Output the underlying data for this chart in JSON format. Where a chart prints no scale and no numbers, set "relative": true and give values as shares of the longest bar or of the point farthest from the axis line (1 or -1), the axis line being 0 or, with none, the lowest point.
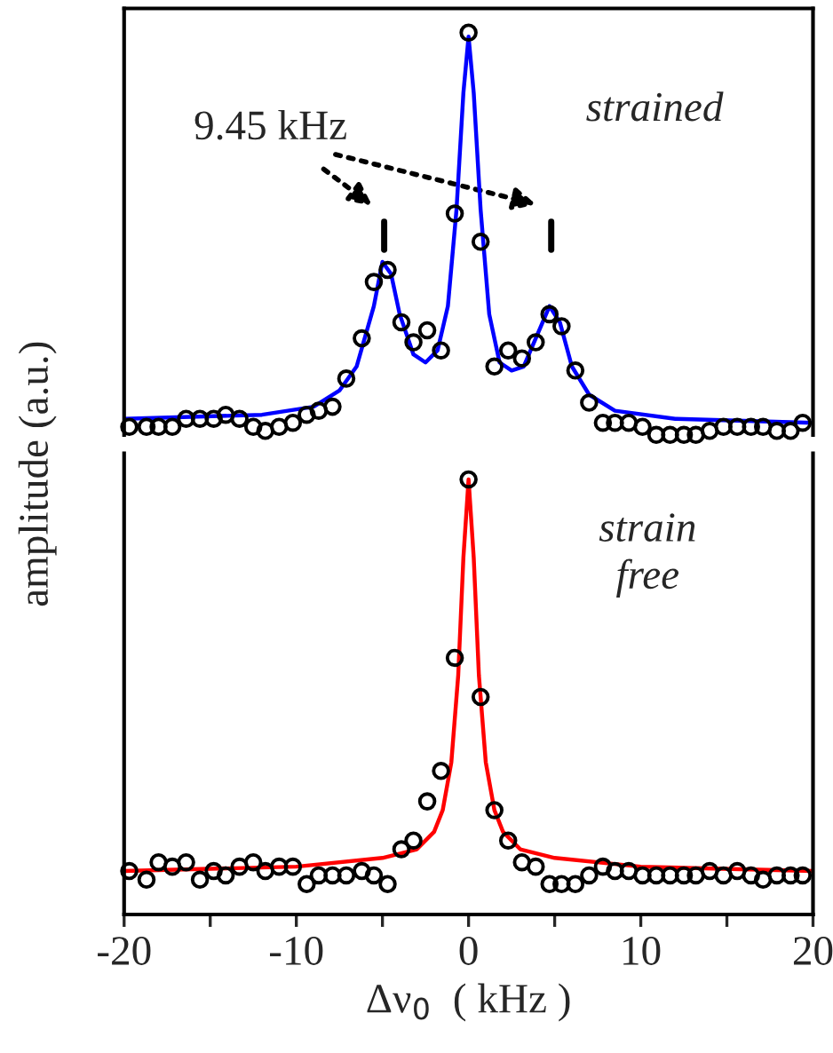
{
  "chart_data": [
    {
      "type": "scatter",
      "relative": true,
      "xlim": [
        -20,
        20
      ],
      "tick_labels": false,
      "ylabel": "amplitude (a.u.)",
      "annotations": [
        "9.45 kHz",
        "strained"
      ],
      "series": [
        {
          "color": "#000000",
          "marker": "circle",
          "x": [
            -19.7,
            -18.7,
            -18.0,
            -17.2,
            -16.4,
            -15.6,
            -14.8,
            -14.1,
            -13.3,
            -12.5,
            -11.8,
            -11.0,
            -10.2,
            -9.4,
            -8.7,
            -7.9,
            -7.1,
            -6.2,
            -5.5,
            -4.7,
            -3.9,
            -3.2,
            -2.4,
            -1.6,
            -0.8,
            0.0,
            0.7,
            1.5,
            2.3,
            3.1,
            3.9,
            4.7,
            5.4,
            6.2,
            7.0,
            7.8,
            8.5,
            9.3,
            10.1,
            10.9,
            11.7,
            12.5,
            13.2,
            14.0,
            14.8,
            15.6,
            16.4,
            17.1,
            17.9,
            18.7,
            19.4
          ],
          "values": [
            0.02,
            0.02,
            0.02,
            0.02,
            0.04,
            0.04,
            0.04,
            0.05,
            0.04,
            0.02,
            0.01,
            0.02,
            0.03,
            0.05,
            0.06,
            0.07,
            0.14,
            0.24,
            0.38,
            0.41,
            0.28,
            0.23,
            0.26,
            0.21,
            0.55,
            1.0,
            0.48,
            0.17,
            0.21,
            0.19,
            0.23,
            0.3,
            0.27,
            0.16,
            0.08,
            0.03,
            0.03,
            0.03,
            0.02,
            0.0,
            0.0,
            0.0,
            0.0,
            0.01,
            0.02,
            0.02,
            0.02,
            0.02,
            0.01,
            0.01,
            0.03
          ]
        },
        {
          "type": "line",
          "color": "#0000ff",
          "x": [
            -20,
            -12,
            -9,
            -7.5,
            -6.5,
            -5.5,
            -5,
            -4.5,
            -4,
            -3.2,
            -2.5,
            -1.8,
            -1.2,
            -0.7,
            -0.3,
            0,
            0.3,
            0.7,
            1.2,
            1.8,
            2.5,
            3.2,
            4,
            4.7,
            5.3,
            6,
            7,
            8.5,
            12,
            20
          ],
          "values": [
            0.04,
            0.05,
            0.07,
            0.11,
            0.17,
            0.32,
            0.43,
            0.4,
            0.3,
            0.2,
            0.18,
            0.21,
            0.32,
            0.56,
            0.85,
            0.99,
            0.85,
            0.56,
            0.3,
            0.18,
            0.16,
            0.17,
            0.25,
            0.32,
            0.28,
            0.17,
            0.1,
            0.06,
            0.04,
            0.03
          ]
        }
      ]
    },
    {
      "type": "scatter",
      "relative": true,
      "xlim": [
        -20,
        20
      ],
      "tick_labels": "x",
      "xlabel": "Δν$_{0}$  ( kHz )",
      "xticks": [
        -20,
        {
          "value": -15,
          "label": null
        },
        -10,
        {
          "value": -5,
          "label": null
        },
        0,
        {
          "value": 5,
          "label": null
        },
        10,
        {
          "value": 15,
          "label": null
        },
        20
      ],
      "annotations": [
        "strain\nfree"
      ],
      "series": [
        {
          "color": "#000000",
          "marker": "circle",
          "x": [
            -19.7,
            -18.7,
            -18.0,
            -17.2,
            -16.4,
            -15.6,
            -14.8,
            -14.1,
            -13.3,
            -12.5,
            -11.8,
            -11.0,
            -10.2,
            -9.4,
            -8.7,
            -7.9,
            -7.1,
            -6.2,
            -5.5,
            -4.7,
            -3.9,
            -3.2,
            -2.4,
            -1.6,
            -0.8,
            0.0,
            0.7,
            1.5,
            2.3,
            3.1,
            3.9,
            4.7,
            5.4,
            6.2,
            7.0,
            7.8,
            8.5,
            9.3,
            10.1,
            10.9,
            11.7,
            12.5,
            13.2,
            14.0,
            14.8,
            15.6,
            16.4,
            17.1,
            17.9,
            18.7,
            19.4
          ],
          "values": [
            0.1,
            0.08,
            0.12,
            0.11,
            0.12,
            0.08,
            0.1,
            0.09,
            0.11,
            0.12,
            0.1,
            0.11,
            0.11,
            0.07,
            0.09,
            0.09,
            0.09,
            0.1,
            0.09,
            0.07,
            0.15,
            0.17,
            0.26,
            0.33,
            0.59,
            1.0,
            0.5,
            0.24,
            0.17,
            0.12,
            0.11,
            0.07,
            0.07,
            0.07,
            0.09,
            0.11,
            0.1,
            0.1,
            0.09,
            0.09,
            0.09,
            0.09,
            0.09,
            0.1,
            0.09,
            0.1,
            0.09,
            0.08,
            0.09,
            0.09,
            0.09
          ]
        },
        {
          "type": "line",
          "color": "#ff0000",
          "x": [
            -20,
            -10,
            -5,
            -3,
            -2,
            -1.5,
            -1,
            -0.6,
            -0.3,
            0,
            0.3,
            0.6,
            1,
            1.5,
            2,
            3,
            5,
            10,
            20
          ],
          "values": [
            0.1,
            0.11,
            0.13,
            0.15,
            0.19,
            0.24,
            0.35,
            0.55,
            0.82,
            1.0,
            0.82,
            0.55,
            0.35,
            0.24,
            0.19,
            0.15,
            0.13,
            0.11,
            0.1
          ]
        }
      ]
    }
  ]
}
